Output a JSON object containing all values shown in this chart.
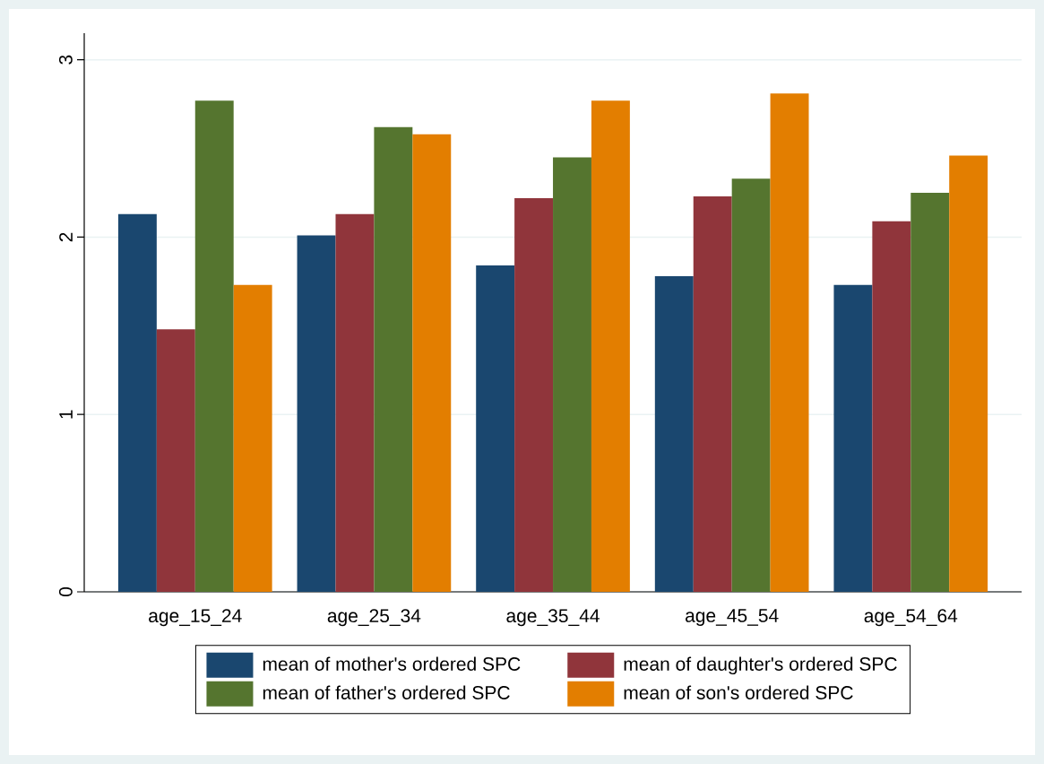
{
  "chart_data": {
    "type": "bar",
    "categories": [
      "age_15_24",
      "age_25_34",
      "age_35_44",
      "age_45_54",
      "age_54_64"
    ],
    "series": [
      {
        "name": "mean of mother's ordered SPC",
        "color": "#1a476f",
        "values": [
          2.13,
          2.01,
          1.84,
          1.78,
          1.73
        ]
      },
      {
        "name": "mean of daughter's ordered SPC",
        "color": "#90353b",
        "values": [
          1.48,
          2.13,
          2.22,
          2.23,
          2.09
        ]
      },
      {
        "name": "mean of father's ordered SPC",
        "color": "#55752f",
        "values": [
          2.77,
          2.62,
          2.45,
          2.33,
          2.25
        ]
      },
      {
        "name": "mean of son's ordered SPC",
        "color": "#e37e00",
        "values": [
          1.73,
          2.58,
          2.77,
          2.81,
          2.46
        ]
      }
    ],
    "ylim": [
      0,
      3.15
    ],
    "yticks": [
      0,
      1,
      2,
      3
    ],
    "grid": "y",
    "legend": "bottom"
  }
}
